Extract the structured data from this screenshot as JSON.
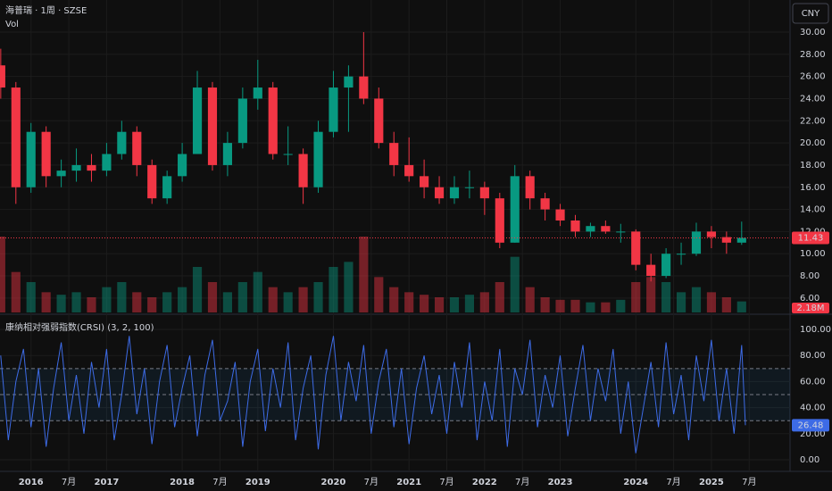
{
  "chart_data": [
    {
      "type": "candlestick",
      "title": "海普瑞 · 1周 · SZSE",
      "volume_title": "Vol",
      "currency": "CNY",
      "up_color": "#089981",
      "down_color": "#f23645",
      "x": [
        2015.6,
        2015.8,
        2016.0,
        2016.2,
        2016.4,
        2016.6,
        2016.8,
        2017.0,
        2017.2,
        2017.4,
        2017.6,
        2017.8,
        2018.0,
        2018.2,
        2018.4,
        2018.6,
        2018.8,
        2019.0,
        2019.2,
        2019.4,
        2019.6,
        2019.8,
        2020.0,
        2020.2,
        2020.4,
        2020.6,
        2020.8,
        2021.0,
        2021.2,
        2021.4,
        2021.6,
        2021.8,
        2022.0,
        2022.2,
        2022.4,
        2022.6,
        2022.8,
        2023.0,
        2023.2,
        2023.4,
        2023.6,
        2023.8,
        2024.0,
        2024.2,
        2024.4,
        2024.6,
        2024.8,
        2025.0,
        2025.2,
        2025.4
      ],
      "open": [
        27,
        25,
        16,
        21,
        17,
        17.5,
        18,
        17.5,
        19,
        21,
        18,
        15,
        17,
        19,
        25,
        18,
        20,
        24,
        25,
        19,
        19,
        16,
        21,
        25,
        26,
        24,
        20,
        18,
        17,
        16,
        15,
        16,
        16,
        15,
        11,
        17,
        15,
        14,
        13,
        12,
        12.5,
        12,
        12,
        9,
        8,
        10,
        10,
        12,
        11.5,
        11
      ],
      "high": [
        28.5,
        25.5,
        21.8,
        21.5,
        18.5,
        19.5,
        19,
        20,
        22,
        21.5,
        18.5,
        17.5,
        20,
        26.5,
        25.5,
        21,
        25,
        27.5,
        25.5,
        21.5,
        19.5,
        22,
        26.5,
        27,
        30,
        25,
        21,
        20.5,
        18.5,
        17,
        17,
        17.5,
        16.5,
        15.5,
        18,
        17.5,
        15.5,
        14.5,
        13.5,
        12.8,
        13,
        12.7,
        12.2,
        10,
        10.5,
        11,
        12.8,
        12.5,
        12,
        12.9
      ],
      "low": [
        24,
        14.5,
        15.5,
        16,
        16,
        16.5,
        16.5,
        17,
        18.5,
        17,
        14.5,
        14.5,
        16.5,
        19,
        17.5,
        17,
        19.5,
        23,
        18.5,
        18,
        14.5,
        15.5,
        20.5,
        21,
        23.5,
        19.5,
        17,
        16.5,
        15,
        14.5,
        14.5,
        15,
        13.5,
        10.5,
        11,
        14,
        13,
        12.5,
        11.5,
        11.5,
        11.8,
        11,
        8.5,
        7.5,
        7.8,
        9,
        9.8,
        10.5,
        10,
        10.8
      ],
      "close": [
        25,
        16,
        21,
        17,
        17.5,
        18,
        17.5,
        19,
        21,
        18,
        15,
        17,
        19,
        25,
        18,
        20,
        24,
        25,
        19,
        19,
        16,
        21,
        25,
        26,
        24,
        20,
        18,
        17,
        16,
        15,
        16,
        16,
        15,
        11,
        17,
        15,
        14,
        13,
        12,
        12.5,
        12,
        12,
        9,
        8,
        10,
        10,
        12,
        11.5,
        11,
        11.43
      ],
      "volume": [
        15,
        8,
        6,
        4,
        3.5,
        4,
        3,
        5,
        6,
        4,
        3,
        4,
        5,
        9,
        6,
        4,
        6,
        8,
        5,
        4,
        5,
        6,
        9,
        10,
        15,
        7,
        5,
        4,
        3.5,
        3,
        3,
        3.5,
        4,
        6,
        11,
        5,
        3,
        2.5,
        2.5,
        2,
        2,
        2.5,
        6,
        7,
        6,
        4,
        5,
        4,
        3,
        2.18
      ],
      "volume_last_label": "2.18M",
      "xlim": [
        2015.59,
        2026.04
      ],
      "ylim": [
        4.7,
        32.9
      ],
      "yticks": [
        {
          "value": 6,
          "label": "6.00"
        },
        {
          "value": 8,
          "label": "8.00"
        },
        {
          "value": 10,
          "label": "10.00"
        },
        {
          "value": 12,
          "label": "12.00"
        },
        {
          "value": 14,
          "label": "14.00"
        },
        {
          "value": 16,
          "label": "16.00"
        },
        {
          "value": 18,
          "label": "18.00"
        },
        {
          "value": 20,
          "label": "20.00"
        },
        {
          "value": 22,
          "label": "22.00"
        },
        {
          "value": 24,
          "label": "24.00"
        },
        {
          "value": 26,
          "label": "26.00"
        },
        {
          "value": 28,
          "label": "28.00"
        },
        {
          "value": 30,
          "label": "30.00"
        }
      ],
      "xticks": [
        2016,
        {
          "value": 2016.5,
          "label": "7月"
        },
        2017,
        2018,
        {
          "value": 2018.5,
          "label": "7月"
        },
        2019,
        2020,
        {
          "value": 2020.5,
          "label": "7月"
        },
        2021,
        {
          "value": 2021.5,
          "label": "7月"
        },
        2022,
        {
          "value": 2022.5,
          "label": "7月"
        },
        2023,
        2024,
        {
          "value": 2024.5,
          "label": "7月"
        },
        2025,
        {
          "value": 2025.5,
          "label": "7月"
        }
      ],
      "grid": true
    },
    {
      "type": "line",
      "title": "康纳相对强弱指数(CRSI) (3, 2, 100)",
      "color": "#3d6be6",
      "x": [
        2015.6,
        2015.7,
        2015.8,
        2015.9,
        2016.0,
        2016.1,
        2016.2,
        2016.3,
        2016.4,
        2016.5,
        2016.6,
        2016.7,
        2016.8,
        2016.9,
        2017.0,
        2017.1,
        2017.2,
        2017.3,
        2017.4,
        2017.5,
        2017.6,
        2017.7,
        2017.8,
        2017.9,
        2018.0,
        2018.1,
        2018.2,
        2018.3,
        2018.4,
        2018.5,
        2018.6,
        2018.7,
        2018.8,
        2018.9,
        2019.0,
        2019.1,
        2019.2,
        2019.3,
        2019.4,
        2019.5,
        2019.6,
        2019.7,
        2019.8,
        2019.9,
        2020.0,
        2020.1,
        2020.2,
        2020.3,
        2020.4,
        2020.5,
        2020.6,
        2020.7,
        2020.8,
        2020.9,
        2021.0,
        2021.1,
        2021.2,
        2021.3,
        2021.4,
        2021.5,
        2021.6,
        2021.7,
        2021.8,
        2021.9,
        2022.0,
        2022.1,
        2022.2,
        2022.3,
        2022.4,
        2022.5,
        2022.6,
        2022.7,
        2022.8,
        2022.9,
        2023.0,
        2023.1,
        2023.2,
        2023.3,
        2023.4,
        2023.5,
        2023.6,
        2023.7,
        2023.8,
        2023.9,
        2024.0,
        2024.1,
        2024.2,
        2024.3,
        2024.4,
        2024.5,
        2024.6,
        2024.7,
        2024.8,
        2024.9,
        2025.0,
        2025.1,
        2025.2,
        2025.3,
        2025.4,
        2025.45
      ],
      "values": [
        80,
        15,
        60,
        85,
        25,
        70,
        10,
        55,
        90,
        30,
        65,
        20,
        75,
        40,
        85,
        15,
        50,
        95,
        35,
        70,
        12,
        60,
        88,
        25,
        55,
        80,
        18,
        65,
        92,
        30,
        45,
        75,
        10,
        60,
        85,
        22,
        70,
        40,
        90,
        15,
        55,
        80,
        8,
        65,
        95,
        30,
        75,
        45,
        88,
        20,
        60,
        85,
        25,
        70,
        12,
        55,
        80,
        35,
        65,
        20,
        75,
        40,
        90,
        15,
        60,
        30,
        85,
        10,
        70,
        50,
        92,
        25,
        65,
        40,
        80,
        18,
        55,
        88,
        30,
        70,
        45,
        85,
        20,
        60,
        5,
        40,
        75,
        25,
        90,
        35,
        65,
        15,
        80,
        45,
        92,
        30,
        70,
        20,
        88,
        26.48
      ],
      "xlim": [
        2015.59,
        2026.04
      ],
      "ylim": [
        -8.9,
        109.6
      ],
      "bands": [
        30,
        50,
        70
      ],
      "yticks": [
        {
          "value": 0,
          "label": "0.00"
        },
        {
          "value": 20,
          "label": "20.00"
        },
        {
          "value": 40,
          "label": "40.00"
        },
        {
          "value": 60,
          "label": "60.00"
        },
        {
          "value": 80,
          "label": "80.00"
        },
        {
          "value": 100,
          "label": "100.00"
        }
      ]
    }
  ]
}
